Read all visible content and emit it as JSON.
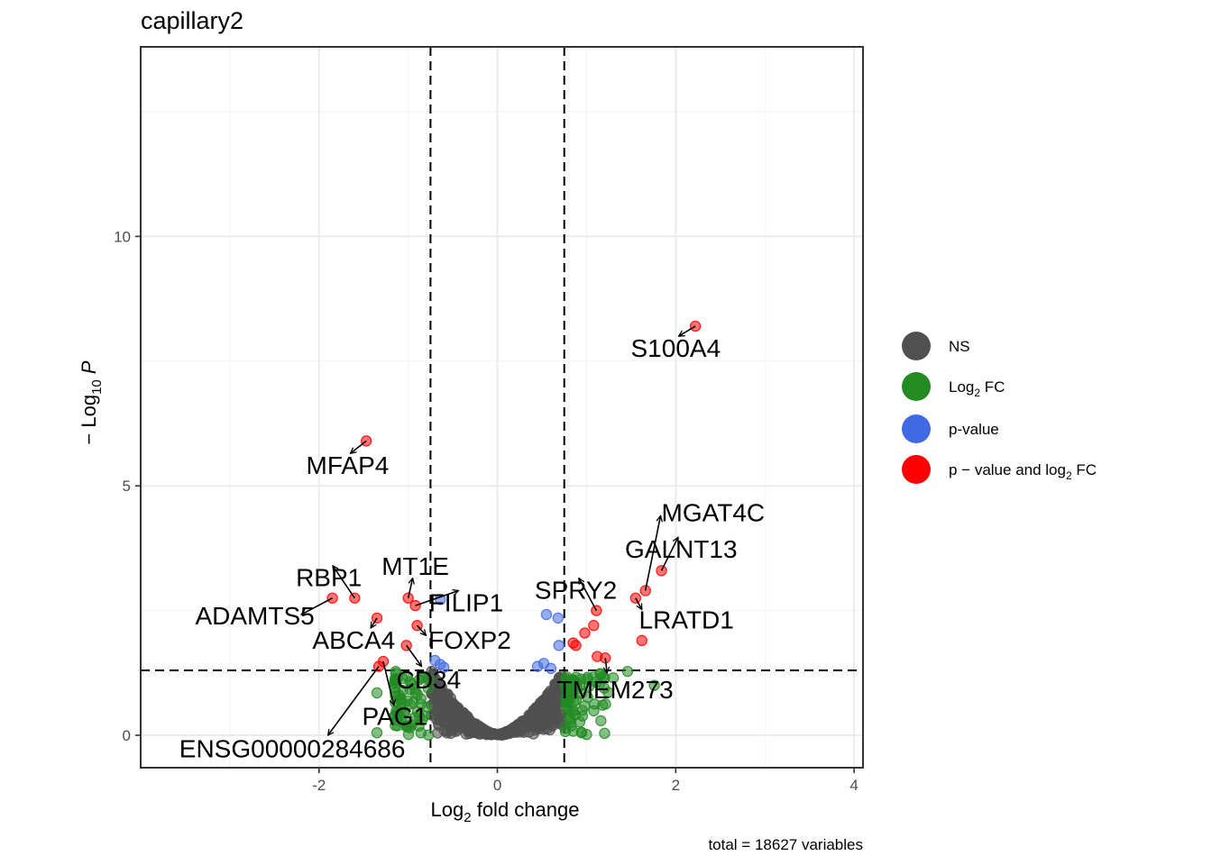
{
  "chart_data": {
    "type": "scatter",
    "title": "capillary2",
    "xlabel": {
      "base": "Log",
      "sub": "2",
      "rest": " fold change"
    },
    "ylabel": {
      "prefix": "− Log",
      "sub": "10",
      "var": "P"
    },
    "caption": "total = 18627 variables",
    "xlim": [
      -4.0,
      4.1
    ],
    "ylim": [
      -0.65,
      13.8
    ],
    "xticks": [
      -2,
      0,
      2,
      4
    ],
    "yticks": [
      0,
      5,
      10
    ],
    "grid": true,
    "cutoffs": {
      "log2fc": 0.75,
      "neglog10p": 1.3
    },
    "colors": {
      "NS": "#505050",
      "Log2FC": "#228b22",
      "pvalue": "#4169e1",
      "both": "#ff0000"
    },
    "legend": {
      "position": "right",
      "items": [
        {
          "key": "NS",
          "label": "NS"
        },
        {
          "key": "Log2FC",
          "label": "Log",
          "sub": "2",
          "rest": " FC"
        },
        {
          "key": "pvalue",
          "label": "p-value"
        },
        {
          "key": "both",
          "label": "p − value and log",
          "sub": "2",
          "rest": " FC"
        }
      ]
    },
    "points": {
      "both": [
        {
          "x": 2.22,
          "y": 8.2
        },
        {
          "x": -1.47,
          "y": 5.9
        },
        {
          "x": 1.84,
          "y": 3.3
        },
        {
          "x": 1.66,
          "y": 2.9
        },
        {
          "x": 1.55,
          "y": 2.75
        },
        {
          "x": -1.85,
          "y": 2.75
        },
        {
          "x": -1.6,
          "y": 2.75
        },
        {
          "x": -1.0,
          "y": 2.75
        },
        {
          "x": -0.92,
          "y": 2.6
        },
        {
          "x": 1.11,
          "y": 2.5
        },
        {
          "x": -1.35,
          "y": 2.35
        },
        {
          "x": -0.9,
          "y": 2.2
        },
        {
          "x": 1.08,
          "y": 2.2
        },
        {
          "x": 0.98,
          "y": 2.05
        },
        {
          "x": 1.62,
          "y": 1.9
        },
        {
          "x": -1.02,
          "y": 1.8
        },
        {
          "x": 0.85,
          "y": 1.85
        },
        {
          "x": 0.88,
          "y": 1.8
        },
        {
          "x": 1.12,
          "y": 1.58
        },
        {
          "x": 1.21,
          "y": 1.55
        },
        {
          "x": -1.28,
          "y": 1.48
        },
        {
          "x": -1.33,
          "y": 1.38
        }
      ],
      "pvalue": [
        {
          "x": -0.64,
          "y": 2.72
        },
        {
          "x": 0.55,
          "y": 2.42
        },
        {
          "x": 0.68,
          "y": 2.35
        },
        {
          "x": 0.69,
          "y": 1.8
        },
        {
          "x": -0.7,
          "y": 1.5
        },
        {
          "x": -0.64,
          "y": 1.42
        },
        {
          "x": 0.45,
          "y": 1.38
        },
        {
          "x": 0.52,
          "y": 1.44
        },
        {
          "x": -0.6,
          "y": 1.36
        },
        {
          "x": 0.6,
          "y": 1.34
        }
      ],
      "Log2FC": [
        {
          "x": 1.46,
          "y": 1.28
        },
        {
          "x": 1.76,
          "y": 1.0
        },
        {
          "x": -1.35,
          "y": 0.85
        },
        {
          "x": -1.35,
          "y": 0.05
        },
        {
          "x": -0.98,
          "y": 0.15
        },
        {
          "x": -1.14,
          "y": 1.28
        },
        {
          "x": -1.06,
          "y": 0.9
        },
        {
          "x": 1.3,
          "y": 1.15
        }
      ],
      "Log2FC_cloud": {
        "xmin": 0.76,
        "xmax": 1.25,
        "ymax": 1.25,
        "count": 70,
        "seed": 3
      },
      "Log2FC_cloud_neg": {
        "xmin": -1.15,
        "xmax": -0.76,
        "ymax": 1.25,
        "count": 60,
        "seed": 9
      },
      "NS_cloud": {
        "xmax": 0.74,
        "ymax": 1.28,
        "count": 520,
        "seed": 17
      }
    },
    "labels": [
      {
        "text": "S100A4",
        "lx": 2.0,
        "ly": 7.75,
        "px": 2.22,
        "py": 8.2
      },
      {
        "text": "MFAP4",
        "lx": -1.68,
        "ly": 5.4,
        "px": -1.47,
        "py": 5.9
      },
      {
        "text": "MGAT4C",
        "lx": 2.42,
        "ly": 4.45,
        "px": 1.66,
        "py": 2.9,
        "ax": 1.83,
        "ay": 4.4
      },
      {
        "text": "GALNT13",
        "lx": 2.06,
        "ly": 3.72,
        "px": 1.84,
        "py": 3.3
      },
      {
        "text": "MT1E",
        "lx": -0.92,
        "ly": 3.38,
        "px": -1.0,
        "py": 2.75,
        "ax": -0.95,
        "ay": 3.15
      },
      {
        "text": "RBP1",
        "lx": -1.89,
        "ly": 3.15,
        "px": -1.6,
        "py": 2.75
      },
      {
        "text": "SPRY2",
        "lx": 0.88,
        "ly": 2.9,
        "px": 1.11,
        "py": 2.5
      },
      {
        "text": "FILIP1",
        "lx": -0.35,
        "ly": 2.65,
        "px": -0.92,
        "py": 2.6
      },
      {
        "text": "ADAMTS5",
        "lx": -2.72,
        "ly": 2.38,
        "px": -1.85,
        "py": 2.75,
        "ax": -2.2,
        "ay": 2.42
      },
      {
        "text": "LRATD1",
        "lx": 2.12,
        "ly": 2.3,
        "px": 1.55,
        "py": 2.75,
        "ax": 1.62,
        "ay": 2.52
      },
      {
        "text": "ABCA4",
        "lx": -1.61,
        "ly": 1.9,
        "px": -1.35,
        "py": 2.35,
        "ax": -1.42,
        "ay": 2.15
      },
      {
        "text": "FOXP2",
        "lx": -0.31,
        "ly": 1.9,
        "px": -0.9,
        "py": 2.2,
        "ax": -0.8,
        "ay": 2.0
      },
      {
        "text": "CD34",
        "lx": -0.77,
        "ly": 1.1,
        "px": -1.02,
        "py": 1.8,
        "ax": -0.85,
        "ay": 1.38
      },
      {
        "text": "TMEM273",
        "lx": 1.32,
        "ly": 0.9,
        "px": 1.21,
        "py": 1.55,
        "ax": 1.23,
        "ay": 1.25
      },
      {
        "text": "PAG1",
        "lx": -1.15,
        "ly": 0.37,
        "px": -1.28,
        "py": 1.48,
        "ax": -1.16,
        "ay": 0.6
      },
      {
        "text": "ENSG00000284686",
        "lx": -2.3,
        "ly": -0.28,
        "px": -1.33,
        "py": 1.38,
        "ax": -1.9,
        "ay": 0.0
      }
    ]
  }
}
